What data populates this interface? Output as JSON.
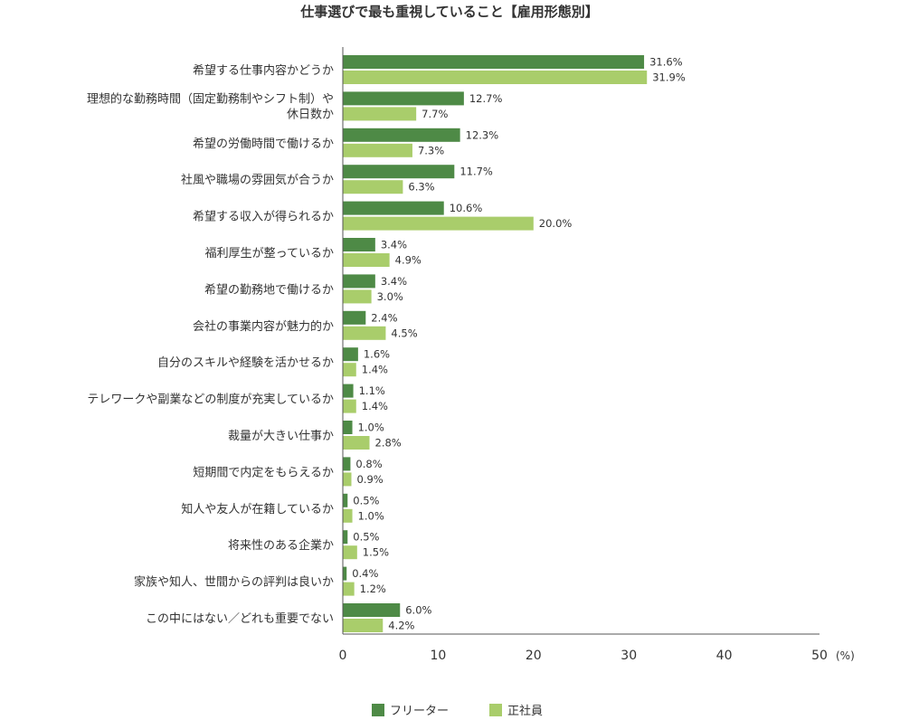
{
  "chart_data": {
    "type": "bar",
    "orientation": "horizontal",
    "title": "仕事選びで最も重視していること【雇用形態別】",
    "categories": [
      "希望する仕事内容かどうか",
      "理想的な勤務時間（固定勤務制やシフト制）や休日数か",
      "希望の労働時間で働けるか",
      "社風や職場の雰囲気が合うか",
      "希望する収入が得られるか",
      "福利厚生が整っているか",
      "希望の勤務地で働けるか",
      "会社の事業内容が魅力的か",
      "自分のスキルや経験を活かせるか",
      "テレワークや副業などの制度が充実しているか",
      "裁量が大きい仕事か",
      "短期間で内定をもらえるか",
      "知人や友人が在籍しているか",
      "将来性のある企業か",
      "家族や知人、世間からの評判は良いか",
      "この中にはない／どれも重要でない"
    ],
    "series": [
      {
        "name": "フリーター",
        "color": "#4e8a46",
        "values": [
          31.6,
          12.7,
          12.3,
          11.7,
          10.6,
          3.4,
          3.4,
          2.4,
          1.6,
          1.1,
          1.0,
          0.8,
          0.5,
          0.5,
          0.4,
          6.0
        ]
      },
      {
        "name": "正社員",
        "color": "#a9cd6b",
        "values": [
          31.9,
          7.7,
          7.3,
          6.3,
          20.0,
          4.9,
          3.0,
          4.5,
          1.4,
          1.4,
          2.8,
          0.9,
          1.0,
          1.5,
          1.2,
          4.2
        ]
      }
    ],
    "value_suffix": "%",
    "xlim": [
      0,
      50
    ],
    "xticks": [
      0,
      10,
      20,
      30,
      40,
      50
    ],
    "x_unit": "(%)",
    "grid": false,
    "legend_position": "bottom-center"
  }
}
